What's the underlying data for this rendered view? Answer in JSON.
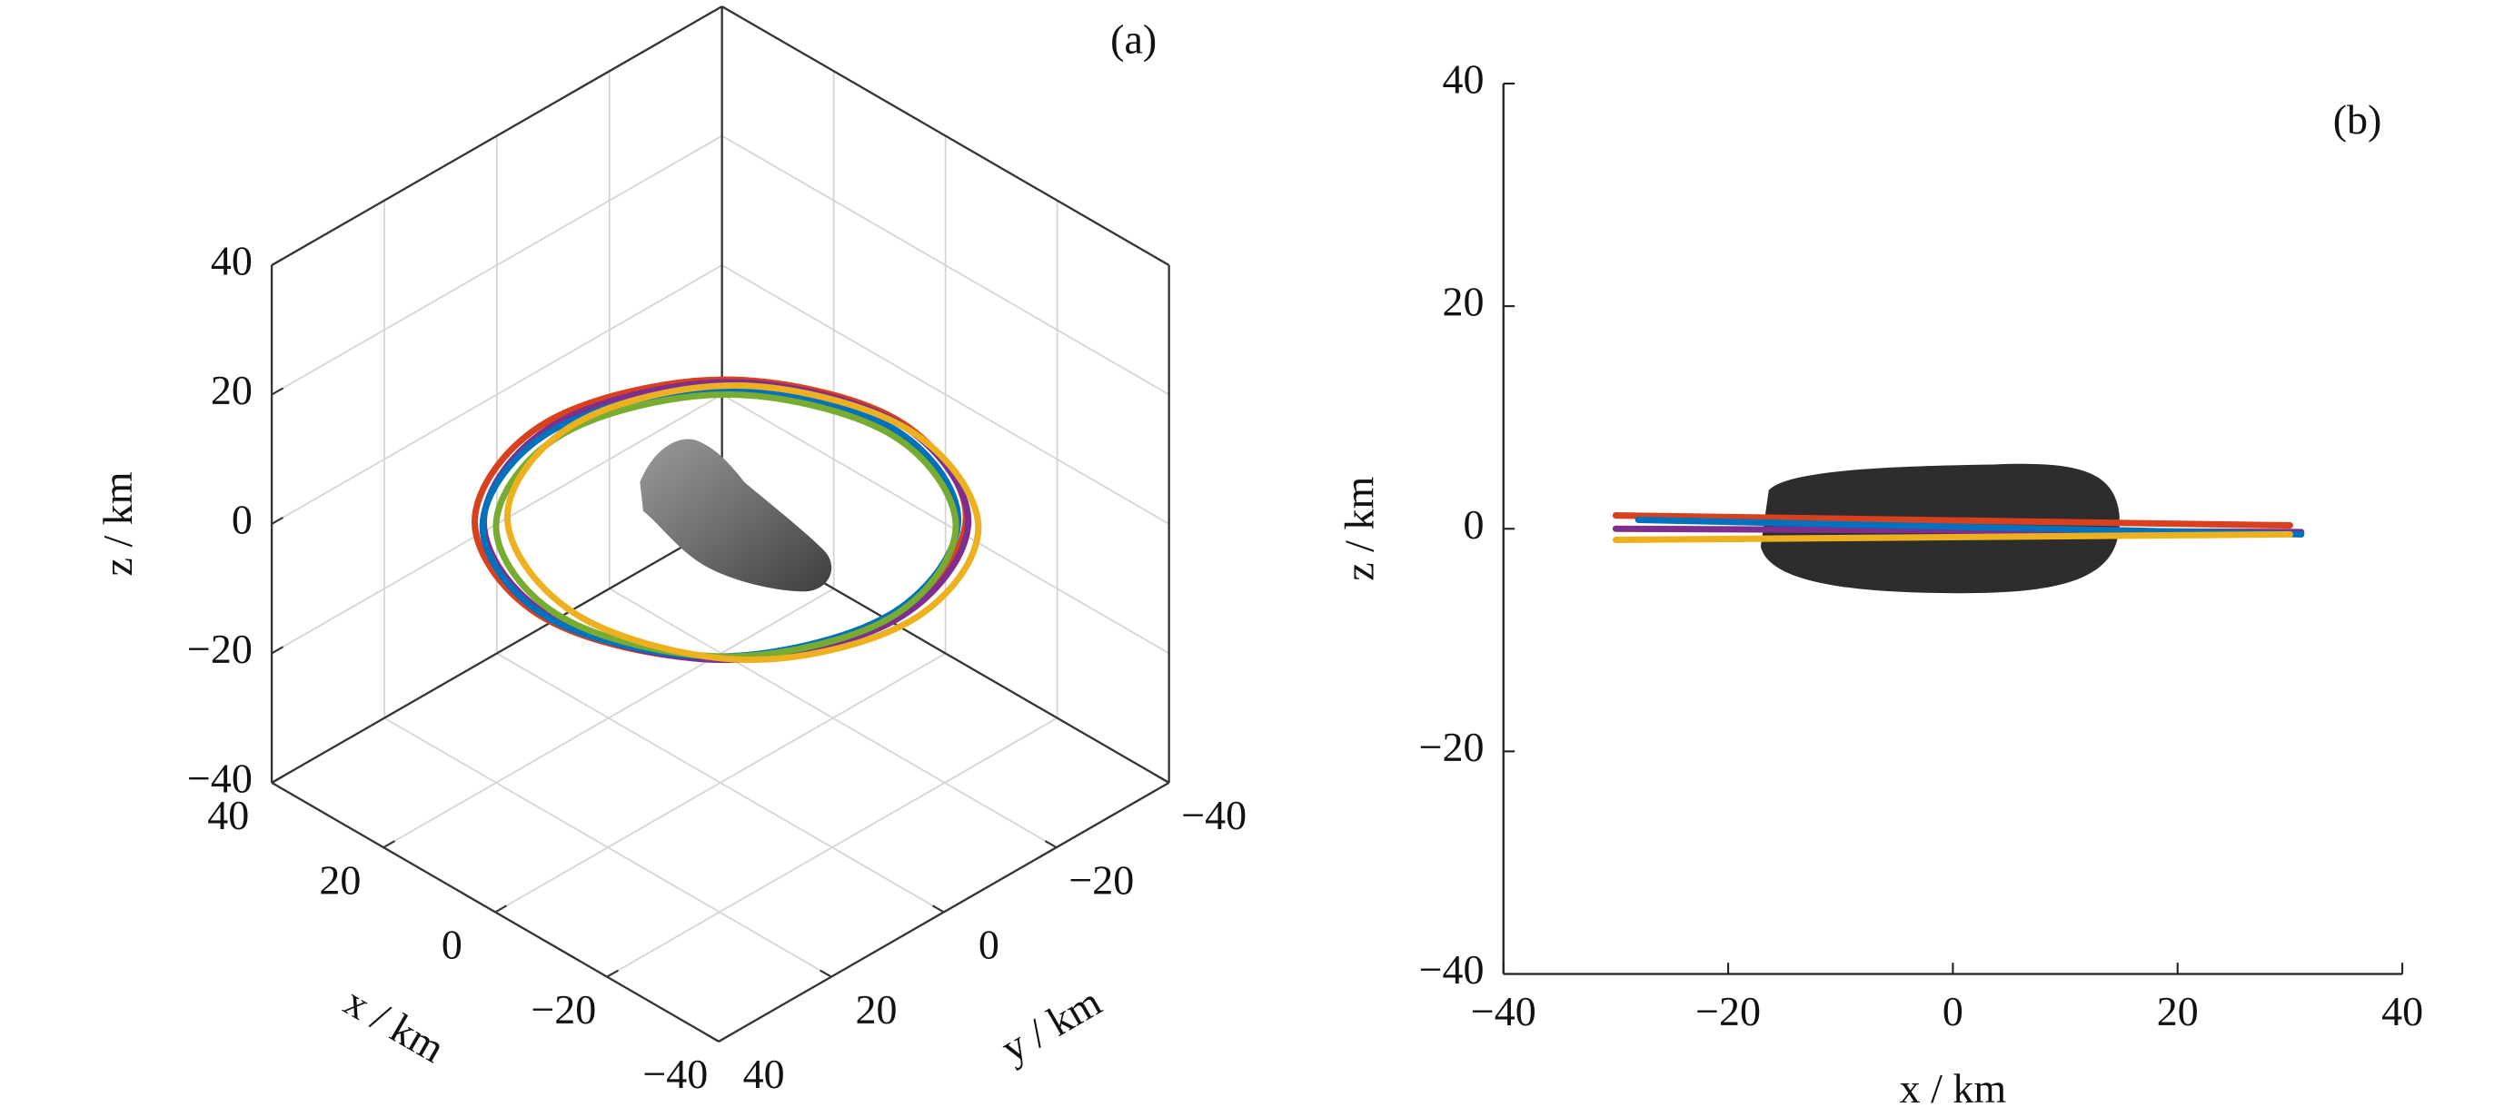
{
  "chart_data": [
    {
      "type": "orbit3d",
      "panel_label": "(a)",
      "xlabel": "x / km",
      "ylabel": "y / km",
      "zlabel": "z / km",
      "xlim": [
        -40,
        40
      ],
      "ylim": [
        -40,
        40
      ],
      "zlim": [
        -40,
        40
      ],
      "xticks": [
        {
          "value": -40,
          "label": "−40"
        },
        {
          "value": -20,
          "label": "−20"
        },
        0,
        20,
        40
      ],
      "yticks": [
        {
          "value": -40,
          "label": "−40"
        },
        {
          "value": -20,
          "label": "−20"
        },
        0,
        20,
        40
      ],
      "zticks": [
        {
          "value": -40,
          "label": "−40"
        },
        {
          "value": -20,
          "label": "−20"
        },
        0,
        20,
        40
      ],
      "grid": true,
      "series": [
        {
          "color": "#d9411e",
          "x": [
            31,
            21.9,
            0,
            -21.9,
            -31,
            -21.9,
            0,
            21.9
          ],
          "y": [
            0,
            21.9,
            31,
            21.9,
            0,
            -21.9,
            -31,
            -21.9
          ],
          "z": [
            0.3,
            0.4,
            0.8,
            1.1,
            1.2,
            1.1,
            0.8,
            0.4
          ]
        },
        {
          "color": "#7e2f8e",
          "x": [
            30.5,
            21.6,
            0,
            -21.6,
            -30.5,
            -21.6,
            0,
            21.6
          ],
          "y": [
            -1,
            20.6,
            29.5,
            20.6,
            -1,
            -22.6,
            -31.5,
            -22.6
          ],
          "z": [
            -0.3,
            -0.2,
            0,
            0.1,
            0,
            -0.1,
            -0.1,
            -0.2
          ]
        },
        {
          "color": "#0072bd",
          "x": [
            30,
            21.2,
            0,
            -21.2,
            -30,
            -21.2,
            0,
            21.2
          ],
          "y": [
            0,
            21.2,
            30,
            21.2,
            0,
            -21.2,
            -30,
            -21.2
          ],
          "z": [
            -0.5,
            -0.3,
            0.2,
            0.7,
            0.8,
            0.6,
            0.1,
            -0.3
          ]
        },
        {
          "color": "#77ac30",
          "x": [
            28,
            19.5,
            -1,
            -21.5,
            -30,
            -21.5,
            -1,
            19.5
          ],
          "y": [
            0,
            20.5,
            29,
            20.5,
            0,
            -20.5,
            -29,
            -20.5
          ],
          "z": [
            0,
            0.2,
            0.5,
            0.5,
            0.3,
            0.1,
            0,
            0
          ]
        },
        {
          "color": "#edb120",
          "x": [
            29,
            20.5,
            -1,
            -22.5,
            -31,
            -22.5,
            -1,
            20.5
          ],
          "y": [
            -3,
            17.5,
            26,
            17.5,
            -3,
            -23.5,
            -32,
            -23.5
          ],
          "z": [
            -0.5,
            -0.6,
            -0.8,
            -1,
            -1,
            -0.9,
            -0.7,
            -0.6
          ]
        }
      ]
    },
    {
      "type": "line",
      "panel_label": "(b)",
      "xlabel": "x / km",
      "ylabel": "z / km",
      "xlim": [
        -40,
        40
      ],
      "ylim": [
        -40,
        40
      ],
      "xticks": [
        {
          "value": -40,
          "label": "−40"
        },
        {
          "value": -20,
          "label": "−20"
        },
        0,
        20,
        40
      ],
      "yticks": [
        {
          "value": -40,
          "label": "−40"
        },
        {
          "value": -20,
          "label": "−20"
        },
        0,
        20,
        40
      ],
      "series": [
        {
          "color": "#d9411e",
          "x": [
            -30,
            30
          ],
          "values": [
            1.2,
            0.3
          ]
        },
        {
          "color": "#7e2f8e",
          "x": [
            -30,
            31
          ],
          "values": [
            0,
            -0.3
          ]
        },
        {
          "color": "#0072bd",
          "x": [
            -28,
            31
          ],
          "values": [
            0.8,
            -0.5
          ]
        },
        {
          "color": "#edb120",
          "x": [
            -30,
            30
          ],
          "values": [
            -1,
            -0.5
          ]
        }
      ]
    }
  ]
}
